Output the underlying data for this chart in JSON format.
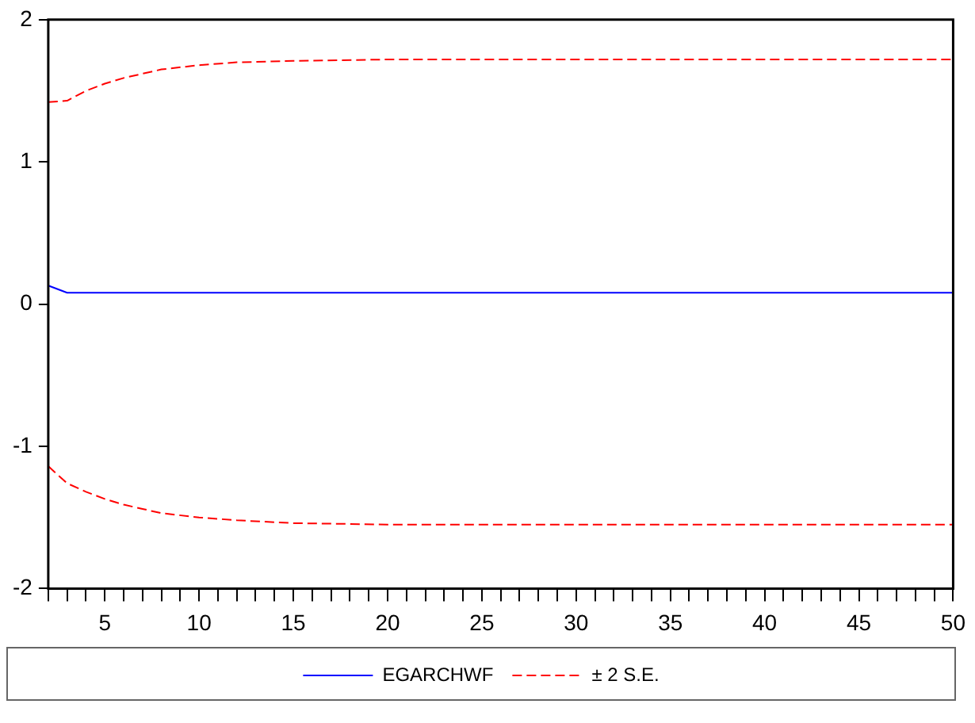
{
  "chart_data": {
    "type": "line",
    "xlim": [
      2,
      50
    ],
    "xticks": [
      {
        "value": 2,
        "label": null
      },
      {
        "value": 3,
        "label": null
      },
      {
        "value": 4,
        "label": null
      },
      5,
      {
        "value": 6,
        "label": null
      },
      {
        "value": 7,
        "label": null
      },
      {
        "value": 8,
        "label": null
      },
      {
        "value": 9,
        "label": null
      },
      10,
      {
        "value": 11,
        "label": null
      },
      {
        "value": 12,
        "label": null
      },
      {
        "value": 13,
        "label": null
      },
      {
        "value": 14,
        "label": null
      },
      15,
      {
        "value": 16,
        "label": null
      },
      {
        "value": 17,
        "label": null
      },
      {
        "value": 18,
        "label": null
      },
      {
        "value": 19,
        "label": null
      },
      20,
      {
        "value": 21,
        "label": null
      },
      {
        "value": 22,
        "label": null
      },
      {
        "value": 23,
        "label": null
      },
      {
        "value": 24,
        "label": null
      },
      25,
      {
        "value": 26,
        "label": null
      },
      {
        "value": 27,
        "label": null
      },
      {
        "value": 28,
        "label": null
      },
      {
        "value": 29,
        "label": null
      },
      30,
      {
        "value": 31,
        "label": null
      },
      {
        "value": 32,
        "label": null
      },
      {
        "value": 33,
        "label": null
      },
      {
        "value": 34,
        "label": null
      },
      35,
      {
        "value": 36,
        "label": null
      },
      {
        "value": 37,
        "label": null
      },
      {
        "value": 38,
        "label": null
      },
      {
        "value": 39,
        "label": null
      },
      40,
      {
        "value": 41,
        "label": null
      },
      {
        "value": 42,
        "label": null
      },
      {
        "value": 43,
        "label": null
      },
      {
        "value": 44,
        "label": null
      },
      45,
      {
        "value": 46,
        "label": null
      },
      {
        "value": 47,
        "label": null
      },
      {
        "value": 48,
        "label": null
      },
      {
        "value": 49,
        "label": null
      },
      50
    ],
    "ylim": [
      -2,
      2
    ],
    "yticks": [
      -2,
      -1,
      0,
      1,
      2
    ],
    "grid": false,
    "legend": "bottom",
    "marker": "none",
    "series": [
      {
        "name": "EGARCHWF",
        "color": "#0000ff",
        "line_style": "solid",
        "x": [
          2,
          3,
          50
        ],
        "values": [
          0.13,
          0.08,
          0.08
        ]
      },
      {
        "name": "± 2 S.E.",
        "color": "#ff0000",
        "line_style": "dashed",
        "x": [
          2,
          3,
          4,
          5,
          6,
          7,
          8,
          10,
          12,
          15,
          20,
          50
        ],
        "values": [
          1.42,
          1.43,
          1.5,
          1.55,
          1.59,
          1.62,
          1.65,
          1.68,
          1.7,
          1.71,
          1.72,
          1.72
        ]
      },
      {
        "color": "#ff0000",
        "line_style": "dashed",
        "x": [
          2,
          3,
          4,
          5,
          6,
          7,
          8,
          10,
          12,
          15,
          20,
          50
        ],
        "values": [
          -1.14,
          -1.26,
          -1.32,
          -1.37,
          -1.41,
          -1.44,
          -1.47,
          -1.5,
          -1.52,
          -1.54,
          -1.55,
          -1.55
        ]
      }
    ]
  }
}
